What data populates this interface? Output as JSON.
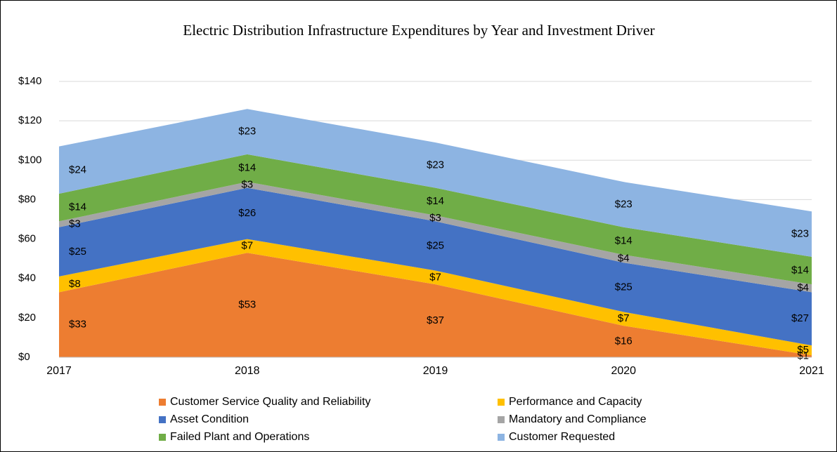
{
  "chart_data": {
    "type": "stacked_area",
    "title": "Electric Distribution Infrastructure Expenditures by Year and Investment Driver",
    "categories": [
      "2017",
      "2018",
      "2019",
      "2020",
      "2021"
    ],
    "series": [
      {
        "name": "Customer Service Quality and Reliability",
        "color": "#ed7d31",
        "values": [
          33,
          53,
          37,
          16,
          1
        ],
        "value_labels": [
          "$33",
          "$53",
          "$37",
          "$16",
          "$1"
        ]
      },
      {
        "name": "Performance and Capacity",
        "color": "#ffc000",
        "values": [
          8,
          7,
          7,
          7,
          5
        ],
        "value_labels": [
          "$8",
          "$7",
          "$7",
          "$7",
          "$5"
        ]
      },
      {
        "name": "Asset Condition",
        "color": "#4472c4",
        "values": [
          25,
          26,
          25,
          25,
          27
        ],
        "value_labels": [
          "$25",
          "$26",
          "$25",
          "$25",
          "$27"
        ]
      },
      {
        "name": "Mandatory and Compliance",
        "color": "#a5a5a5",
        "values": [
          3,
          3,
          3,
          4,
          4
        ],
        "value_labels": [
          "$3",
          "$3",
          "$3",
          "$4",
          "$4"
        ]
      },
      {
        "name": "Failed Plant and Operations",
        "color": "#70ad47",
        "values": [
          14,
          14,
          14,
          14,
          14
        ],
        "value_labels": [
          "$14",
          "$14",
          "$14",
          "$14",
          "$14"
        ]
      },
      {
        "name": "Customer Requested",
        "color": "#8db4e2",
        "values": [
          24,
          23,
          23,
          23,
          23
        ],
        "value_labels": [
          "$24",
          "$23",
          "$23",
          "$23",
          "$23"
        ]
      }
    ],
    "ylim": [
      0,
      140
    ],
    "yticks": [
      {
        "value": 0,
        "label": "$0"
      },
      {
        "value": 20,
        "label": "$20"
      },
      {
        "value": 40,
        "label": "$40"
      },
      {
        "value": 60,
        "label": "$60"
      },
      {
        "value": 80,
        "label": "$80"
      },
      {
        "value": 100,
        "label": "$100"
      },
      {
        "value": 120,
        "label": "$120"
      },
      {
        "value": 140,
        "label": "$140"
      }
    ],
    "grid": true,
    "legend": "bottom"
  }
}
